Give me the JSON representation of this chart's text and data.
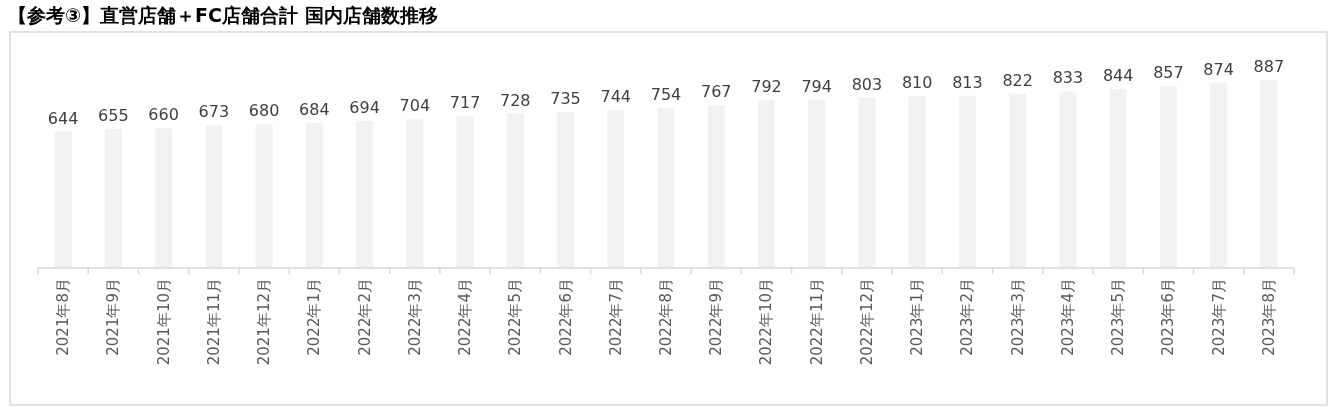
{
  "chart_data": {
    "type": "bar",
    "title": "【参考③】直営店舗＋FC店舗合計 国内店舗数推移",
    "categories": [
      "2021年8月",
      "2021年9月",
      "2021年10月",
      "2021年11月",
      "2021年12月",
      "2022年1月",
      "2022年2月",
      "2022年3月",
      "2022年4月",
      "2022年5月",
      "2022年6月",
      "2022年7月",
      "2022年8月",
      "2022年9月",
      "2022年10月",
      "2022年11月",
      "2022年12月",
      "2023年1月",
      "2023年2月",
      "2023年3月",
      "2023年4月",
      "2023年5月",
      "2023年6月",
      "2023年7月",
      "2023年8月"
    ],
    "values": [
      644,
      655,
      660,
      673,
      680,
      684,
      694,
      704,
      717,
      728,
      735,
      744,
      754,
      767,
      792,
      794,
      803,
      810,
      813,
      822,
      833,
      844,
      857,
      874,
      887
    ],
    "color": "#f2f2f2",
    "data_labels": true
  }
}
